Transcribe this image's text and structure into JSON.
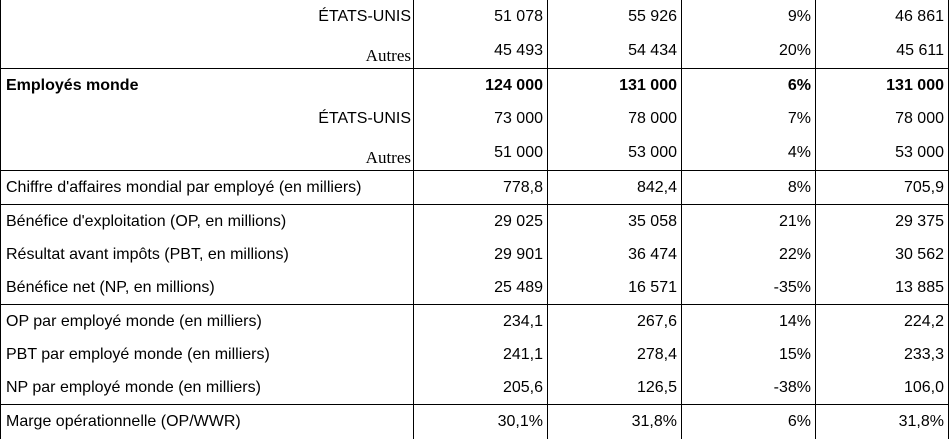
{
  "table": {
    "rows": [
      {
        "label": "ÉTATS-UNIS",
        "v1": "51 078",
        "v2": "55 926",
        "v3": "9%",
        "v4": "46 861"
      },
      {
        "label": "Autres",
        "v1": "45 493",
        "v2": "54 434",
        "v3": "20%",
        "v4": "45 611"
      },
      {
        "label": "Employés monde",
        "v1": "124 000",
        "v2": "131 000",
        "v3": "6%",
        "v4": "131 000"
      },
      {
        "label": "ÉTATS-UNIS",
        "v1": "73 000",
        "v2": "78 000",
        "v3": "7%",
        "v4": "78 000"
      },
      {
        "label": "Autres",
        "v1": "51 000",
        "v2": "53 000",
        "v3": "4%",
        "v4": "53 000"
      },
      {
        "label": "Chiffre d'affaires mondial par employé (en milliers)",
        "v1": "778,8",
        "v2": "842,4",
        "v3": "8%",
        "v4": "705,9"
      },
      {
        "label": "Bénéfice d'exploitation (OP, en millions)",
        "v1": "29 025",
        "v2": "35 058",
        "v3": "21%",
        "v4": "29 375"
      },
      {
        "label": "Résultat avant impôts (PBT, en millions)",
        "v1": "29 901",
        "v2": "36 474",
        "v3": "22%",
        "v4": "30 562"
      },
      {
        "label": "Bénéfice net (NP, en millions)",
        "v1": "25 489",
        "v2": "16 571",
        "v3": "-35%",
        "v4": "13 885"
      },
      {
        "label": "OP par employé monde (en milliers)",
        "v1": "234,1",
        "v2": "267,6",
        "v3": "14%",
        "v4": "224,2"
      },
      {
        "label": "PBT par employé monde (en milliers)",
        "v1": "241,1",
        "v2": "278,4",
        "v3": "15%",
        "v4": "233,3"
      },
      {
        "label": "NP par employé monde (en milliers)",
        "v1": "205,6",
        "v2": "126,5",
        "v3": "-38%",
        "v4": "106,0"
      },
      {
        "label": "Marge opérationnelle (OP/WWR)",
        "v1": "30,1%",
        "v2": "31,8%",
        "v3": "6%",
        "v4": "31,8%"
      }
    ]
  }
}
